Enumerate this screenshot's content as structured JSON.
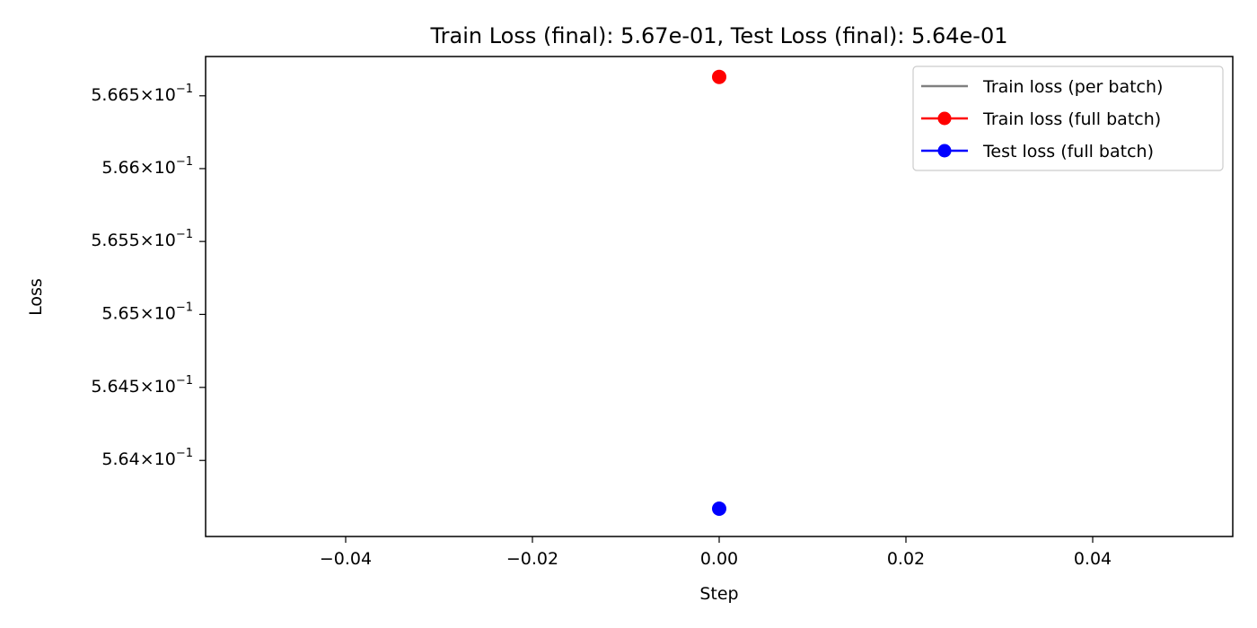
{
  "chart_data": {
    "type": "scatter",
    "title": "Train Loss (final): 5.67e-01, Test Loss (final): 5.64e-01",
    "xlabel": "Step",
    "ylabel": "Loss",
    "xlim": [
      -0.055,
      0.055
    ],
    "ylim": [
      0.56348,
      0.56677
    ],
    "y_scale": "log",
    "grid": false,
    "legend_position": "top-right",
    "x_ticks": [
      {
        "value": -0.04,
        "label": "−0.04"
      },
      {
        "value": -0.02,
        "label": "−0.02"
      },
      {
        "value": 0.0,
        "label": "0.00"
      },
      {
        "value": 0.02,
        "label": "0.02"
      },
      {
        "value": 0.04,
        "label": "0.04"
      }
    ],
    "y_ticks": [
      {
        "value": 0.5665,
        "mantissa": "5.665",
        "base": "10",
        "exponent": "−1"
      },
      {
        "value": 0.566,
        "mantissa": "5.66",
        "base": "10",
        "exponent": "−1"
      },
      {
        "value": 0.5655,
        "mantissa": "5.655",
        "base": "10",
        "exponent": "−1"
      },
      {
        "value": 0.565,
        "mantissa": "5.65",
        "base": "10",
        "exponent": "−1"
      },
      {
        "value": 0.5645,
        "mantissa": "5.645",
        "base": "10",
        "exponent": "−1"
      },
      {
        "value": 0.564,
        "mantissa": "5.64",
        "base": "10",
        "exponent": "−1"
      }
    ],
    "series": [
      {
        "name": "Train loss (per batch)",
        "color": "#808080",
        "marker": "none",
        "x": [],
        "y": []
      },
      {
        "name": "Train loss (full batch)",
        "color": "#ff0000",
        "marker": "circle",
        "x": [
          0.0
        ],
        "y": [
          0.56663
        ]
      },
      {
        "name": "Test loss (full batch)",
        "color": "#0000ff",
        "marker": "circle",
        "x": [
          0.0
        ],
        "y": [
          0.56367
        ]
      }
    ]
  }
}
